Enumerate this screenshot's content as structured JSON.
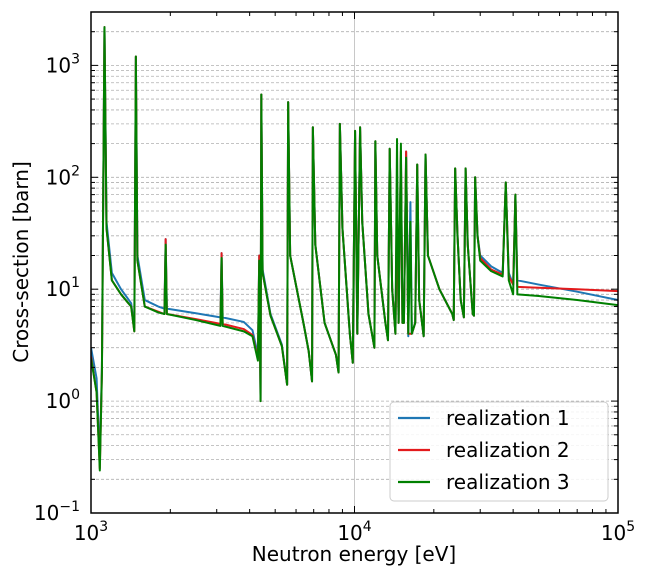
{
  "chart_data": {
    "type": "line",
    "title": "",
    "xlabel": "Neutron energy [eV]",
    "ylabel": "Cross-section [barn]",
    "xscale": "log",
    "yscale": "log",
    "xlim": [
      1000,
      100000
    ],
    "ylim": [
      0.1,
      3000
    ],
    "x_ticks": [
      {
        "base": "10",
        "exp": "3"
      },
      {
        "base": "10",
        "exp": "4"
      },
      {
        "base": "10",
        "exp": "5"
      }
    ],
    "y_ticks": [
      {
        "base": "10",
        "exp": "−1"
      },
      {
        "base": "10",
        "exp": "0"
      },
      {
        "base": "10",
        "exp": "1"
      },
      {
        "base": "10",
        "exp": "2"
      },
      {
        "base": "10",
        "exp": "3"
      }
    ],
    "grid": {
      "x_major": true,
      "y_minor": true
    },
    "legend": {
      "placement": "lower-right"
    },
    "series": [
      {
        "name": "realization 1",
        "color": "#1f77b4",
        "points": [
          [
            1000,
            3.0
          ],
          [
            1050,
            1.6
          ],
          [
            1080,
            0.3
          ],
          [
            1100,
            2.0
          ],
          [
            1125,
            2200
          ],
          [
            1145,
            40
          ],
          [
            1200,
            14
          ],
          [
            1300,
            10
          ],
          [
            1420,
            7.5
          ],
          [
            1460,
            4.5
          ],
          [
            1480,
            1200
          ],
          [
            1500,
            20
          ],
          [
            1600,
            8
          ],
          [
            1800,
            7
          ],
          [
            1900,
            6.7
          ],
          [
            1920,
            28
          ],
          [
            1940,
            6.7
          ],
          [
            2500,
            6.1
          ],
          [
            3100,
            5.6
          ],
          [
            3130,
            21
          ],
          [
            3160,
            5.6
          ],
          [
            3800,
            5.1
          ],
          [
            4100,
            4.3
          ],
          [
            4300,
            2.6
          ],
          [
            4350,
            20
          ],
          [
            4400,
            1.0
          ],
          [
            4430,
            550
          ],
          [
            4480,
            15
          ],
          [
            4800,
            6
          ],
          [
            5300,
            3.2
          ],
          [
            5550,
            1.4
          ],
          [
            5600,
            470
          ],
          [
            5700,
            20
          ],
          [
            6400,
            5
          ],
          [
            6700,
            2.8
          ],
          [
            6900,
            1.5
          ],
          [
            6950,
            280
          ],
          [
            7100,
            25
          ],
          [
            7700,
            5
          ],
          [
            8500,
            2.6
          ],
          [
            8700,
            1.8
          ],
          [
            8800,
            300
          ],
          [
            9000,
            35
          ],
          [
            9600,
            4
          ],
          [
            9850,
            2.2
          ],
          [
            10050,
            260
          ],
          [
            10250,
            4
          ],
          [
            10500,
            280
          ],
          [
            10700,
            40
          ],
          [
            11300,
            6
          ],
          [
            11900,
            3
          ],
          [
            12000,
            210
          ],
          [
            12200,
            20
          ],
          [
            13100,
            5
          ],
          [
            13400,
            3.5
          ],
          [
            13600,
            180
          ],
          [
            13900,
            10
          ],
          [
            14300,
            4
          ],
          [
            14500,
            80
          ],
          [
            14700,
            5
          ],
          [
            15000,
            150
          ],
          [
            15200,
            6
          ],
          [
            15400,
            5
          ],
          [
            15700,
            170
          ],
          [
            16000,
            3.8
          ],
          [
            16300,
            60
          ],
          [
            16500,
            4
          ],
          [
            17000,
            5
          ],
          [
            17300,
            130
          ],
          [
            17600,
            8
          ],
          [
            18300,
            3.8
          ],
          [
            18600,
            160
          ],
          [
            19000,
            20
          ],
          [
            21000,
            10
          ],
          [
            23500,
            6
          ],
          [
            23800,
            5.3
          ],
          [
            24100,
            120
          ],
          [
            24600,
            30
          ],
          [
            25300,
            8
          ],
          [
            26000,
            5.6
          ],
          [
            26400,
            120
          ],
          [
            26900,
            25
          ],
          [
            28100,
            6
          ],
          [
            28400,
            5.8
          ],
          [
            28700,
            100
          ],
          [
            29300,
            30
          ],
          [
            30000,
            20
          ],
          [
            33000,
            16
          ],
          [
            36500,
            14
          ],
          [
            37500,
            90
          ],
          [
            38500,
            14
          ],
          [
            40000,
            11
          ],
          [
            40800,
            70
          ],
          [
            41500,
            12
          ],
          [
            50000,
            11
          ],
          [
            70000,
            9.5
          ],
          [
            100000,
            8
          ]
        ]
      },
      {
        "name": "realization 2",
        "color": "#e31a1c",
        "points": [
          [
            1000,
            2.5
          ],
          [
            1050,
            1.2
          ],
          [
            1080,
            0.25
          ],
          [
            1100,
            1.8
          ],
          [
            1125,
            2200
          ],
          [
            1145,
            35
          ],
          [
            1200,
            12
          ],
          [
            1300,
            9
          ],
          [
            1420,
            7
          ],
          [
            1460,
            4.2
          ],
          [
            1480,
            1200
          ],
          [
            1500,
            18
          ],
          [
            1600,
            7
          ],
          [
            1800,
            6.3
          ],
          [
            1900,
            6
          ],
          [
            1920,
            28
          ],
          [
            1940,
            6
          ],
          [
            2500,
            5.4
          ],
          [
            3100,
            4.9
          ],
          [
            3130,
            21
          ],
          [
            3160,
            4.9
          ],
          [
            3800,
            4.4
          ],
          [
            4100,
            3.9
          ],
          [
            4300,
            2.4
          ],
          [
            4350,
            20
          ],
          [
            4400,
            1.0
          ],
          [
            4430,
            550
          ],
          [
            4480,
            14
          ],
          [
            4800,
            5.8
          ],
          [
            5300,
            3.1
          ],
          [
            5550,
            1.4
          ],
          [
            5600,
            470
          ],
          [
            5700,
            20
          ],
          [
            6400,
            5
          ],
          [
            6700,
            2.8
          ],
          [
            6900,
            1.5
          ],
          [
            6950,
            280
          ],
          [
            7100,
            25
          ],
          [
            7700,
            5
          ],
          [
            8500,
            2.6
          ],
          [
            8700,
            1.8
          ],
          [
            8800,
            300
          ],
          [
            9000,
            35
          ],
          [
            9600,
            4
          ],
          [
            9850,
            2.2
          ],
          [
            10050,
            260
          ],
          [
            10250,
            4
          ],
          [
            10500,
            280
          ],
          [
            10700,
            40
          ],
          [
            11300,
            6
          ],
          [
            11900,
            3
          ],
          [
            12000,
            210
          ],
          [
            12200,
            20
          ],
          [
            13100,
            5
          ],
          [
            13400,
            3.5
          ],
          [
            13600,
            180
          ],
          [
            13900,
            10
          ],
          [
            14300,
            4
          ],
          [
            14500,
            60
          ],
          [
            14700,
            5
          ],
          [
            15000,
            170
          ],
          [
            15200,
            5
          ],
          [
            15400,
            5
          ],
          [
            15700,
            170
          ],
          [
            16000,
            4.0
          ],
          [
            16300,
            4
          ],
          [
            16500,
            4
          ],
          [
            17000,
            5
          ],
          [
            17300,
            130
          ],
          [
            17600,
            8
          ],
          [
            18300,
            3.8
          ],
          [
            18600,
            160
          ],
          [
            19000,
            20
          ],
          [
            21000,
            10
          ],
          [
            23500,
            6
          ],
          [
            23800,
            5.3
          ],
          [
            24100,
            120
          ],
          [
            24600,
            30
          ],
          [
            25300,
            8
          ],
          [
            26000,
            5.6
          ],
          [
            26400,
            120
          ],
          [
            26900,
            25
          ],
          [
            28100,
            6
          ],
          [
            28400,
            5.8
          ],
          [
            28700,
            100
          ],
          [
            29300,
            30
          ],
          [
            30000,
            19
          ],
          [
            33000,
            15
          ],
          [
            36500,
            13.5
          ],
          [
            37500,
            90
          ],
          [
            38500,
            13
          ],
          [
            40000,
            11
          ],
          [
            40800,
            70
          ],
          [
            41500,
            10.5
          ],
          [
            50000,
            10.3
          ],
          [
            70000,
            10
          ],
          [
            100000,
            9.6
          ]
        ]
      },
      {
        "name": "realization 3",
        "color": "#008000",
        "points": [
          [
            1000,
            2.4
          ],
          [
            1050,
            1.2
          ],
          [
            1080,
            0.24
          ],
          [
            1100,
            1.8
          ],
          [
            1125,
            2200
          ],
          [
            1145,
            35
          ],
          [
            1200,
            12
          ],
          [
            1300,
            9
          ],
          [
            1420,
            7
          ],
          [
            1460,
            4.2
          ],
          [
            1480,
            1200
          ],
          [
            1500,
            18
          ],
          [
            1600,
            7
          ],
          [
            1800,
            6.2
          ],
          [
            1900,
            6
          ],
          [
            1920,
            25
          ],
          [
            1940,
            6
          ],
          [
            2500,
            5.3
          ],
          [
            3100,
            4.7
          ],
          [
            3130,
            19
          ],
          [
            3160,
            4.7
          ],
          [
            3800,
            4.2
          ],
          [
            4100,
            3.8
          ],
          [
            4300,
            2.3
          ],
          [
            4350,
            18
          ],
          [
            4400,
            1.0
          ],
          [
            4430,
            550
          ],
          [
            4480,
            14
          ],
          [
            4800,
            5.8
          ],
          [
            5300,
            3.1
          ],
          [
            5550,
            1.4
          ],
          [
            5600,
            470
          ],
          [
            5700,
            20
          ],
          [
            6400,
            5
          ],
          [
            6700,
            2.8
          ],
          [
            6900,
            1.5
          ],
          [
            6950,
            280
          ],
          [
            7100,
            25
          ],
          [
            7700,
            5
          ],
          [
            8500,
            2.6
          ],
          [
            8700,
            1.8
          ],
          [
            8800,
            300
          ],
          [
            9000,
            35
          ],
          [
            9600,
            4
          ],
          [
            9850,
            2.2
          ],
          [
            10050,
            260
          ],
          [
            10250,
            4
          ],
          [
            10500,
            280
          ],
          [
            10700,
            40
          ],
          [
            11300,
            6
          ],
          [
            11900,
            3
          ],
          [
            12000,
            210
          ],
          [
            12200,
            20
          ],
          [
            13100,
            5
          ],
          [
            13400,
            3.5
          ],
          [
            13600,
            180
          ],
          [
            13900,
            10
          ],
          [
            14300,
            4
          ],
          [
            14500,
            220
          ],
          [
            14700,
            5
          ],
          [
            15000,
            200
          ],
          [
            15200,
            5
          ],
          [
            15400,
            5
          ],
          [
            15700,
            150
          ],
          [
            16000,
            4.0
          ],
          [
            16300,
            40
          ],
          [
            16500,
            4
          ],
          [
            17000,
            5
          ],
          [
            17300,
            130
          ],
          [
            17600,
            8
          ],
          [
            18300,
            3.8
          ],
          [
            18600,
            160
          ],
          [
            19000,
            20
          ],
          [
            21000,
            10
          ],
          [
            23500,
            6
          ],
          [
            23800,
            5.3
          ],
          [
            24100,
            120
          ],
          [
            24600,
            30
          ],
          [
            25300,
            8
          ],
          [
            26000,
            5.6
          ],
          [
            26400,
            120
          ],
          [
            26900,
            25
          ],
          [
            28100,
            6
          ],
          [
            28400,
            5.8
          ],
          [
            28700,
            100
          ],
          [
            29300,
            30
          ],
          [
            30000,
            18
          ],
          [
            33000,
            14.5
          ],
          [
            36500,
            13
          ],
          [
            37500,
            90
          ],
          [
            38500,
            12
          ],
          [
            40000,
            9
          ],
          [
            40800,
            70
          ],
          [
            41500,
            9
          ],
          [
            50000,
            8.7
          ],
          [
            70000,
            8
          ],
          [
            100000,
            7.2
          ]
        ]
      }
    ]
  }
}
